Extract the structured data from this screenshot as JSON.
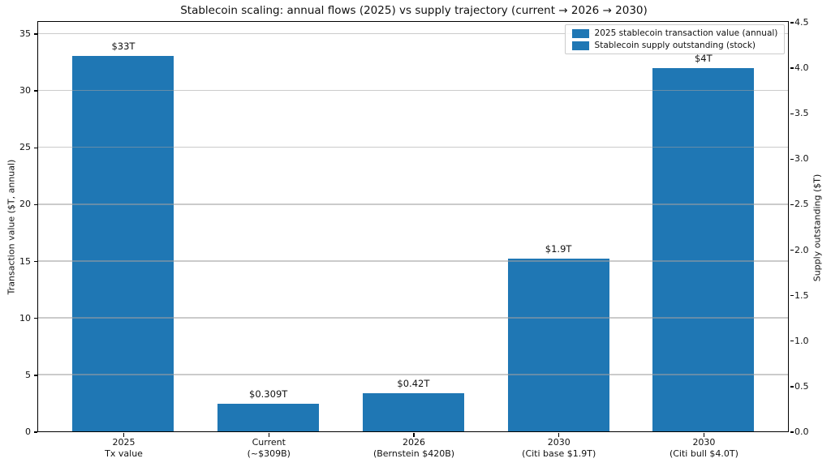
{
  "chart_data": {
    "type": "bar",
    "title": "Stablecoin scaling: annual flows (2025) vs supply trajectory (current → 2026 → 2030)",
    "left_axis": {
      "label": "Transaction value ($T, annual)",
      "ticks": [
        0,
        5,
        10,
        15,
        20,
        25,
        30,
        35
      ],
      "max": 36
    },
    "right_axis": {
      "label": "Supply outstanding ($T)",
      "ticks": [
        "0.0",
        "0.5",
        "1.0",
        "1.5",
        "2.0",
        "2.5",
        "3.0",
        "3.5",
        "4.0",
        "4.5"
      ],
      "max": 4.5
    },
    "categories": [
      "2025\nTx value",
      "Current\n(~$309B)",
      "2026\n(Bernstein $420B)",
      "2030\n(Citi base $1.9T)",
      "2030\n(Citi bull $4.0T)"
    ],
    "bars": [
      {
        "value": 33,
        "axis": "left",
        "label": "$33T"
      },
      {
        "value": 0.309,
        "axis": "right",
        "label": "$0.309T"
      },
      {
        "value": 0.42,
        "axis": "right",
        "label": "$0.42T"
      },
      {
        "value": 1.9,
        "axis": "right",
        "label": "$1.9T"
      },
      {
        "value": 4.0,
        "axis": "right",
        "label": "$4T"
      }
    ],
    "legend": [
      {
        "label": "2025 stablecoin transaction value (annual)",
        "color": "#1f77b4"
      },
      {
        "label": "Stablecoin supply outstanding (stock)",
        "color": "#1f77b4"
      }
    ],
    "colors": {
      "bar": "#1f77b4",
      "grid": "#d9d9d9",
      "spine": "#000000",
      "text": "#111111"
    },
    "grid": {
      "on": true,
      "axis": "left"
    },
    "layout": {
      "bar_width_units": 0.7,
      "x_margin_units": 0.585,
      "legend_position": "upper right"
    }
  }
}
